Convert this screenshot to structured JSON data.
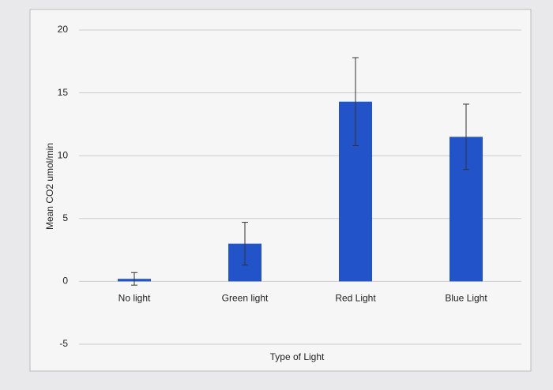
{
  "chart_data": {
    "type": "bar",
    "y_label": "Mean CO2 umol/min",
    "x_label": "Type of Light",
    "categories": [
      "No light",
      "Green light",
      "Red Light",
      "Blue Light"
    ],
    "values": [
      0.2,
      3,
      14.3,
      11.5
    ],
    "errors": [
      0.5,
      1.7,
      3.5,
      2.6
    ],
    "color": "#2353c9",
    "ylim": [
      -5,
      20
    ],
    "yticks": [
      -5,
      0,
      5,
      10,
      15,
      20
    ],
    "grid": true
  }
}
